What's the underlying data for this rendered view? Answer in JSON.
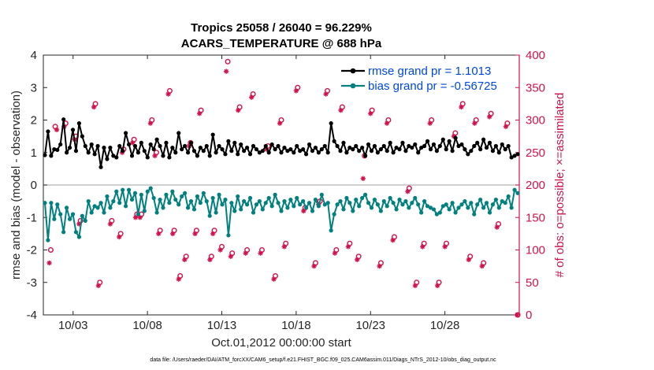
{
  "chart_data": {
    "type": "line",
    "title": "Tropics 25058 / 26040 = 96.229%",
    "subtitle": "ACARS_TEMPERATURE @ 688 hPa",
    "xlabel": "Oct.01,2012 00:00:00 start",
    "ylabel": "rmse and bias (model - observation)",
    "y2label": "# of obs: o=possible; ×=assimilated",
    "footnote": "data file: /Users/raeder/DAI/ATM_forcXX/CAM6_setup/f.e21.FHIST_BGC.f09_025.CAM6assim.011/Diags_NTrS_2012-10/obs_diag_output.nc",
    "xlim": [
      1,
      33
    ],
    "ylim": [
      -4,
      4
    ],
    "y2lim": [
      0,
      400
    ],
    "xtick_positions": [
      3,
      8,
      13,
      18,
      23,
      28
    ],
    "xtick_labels": [
      "10/03",
      "10/08",
      "10/13",
      "10/18",
      "10/23",
      "10/28"
    ],
    "yticks": [
      -4,
      -3,
      -2,
      -1,
      0,
      1,
      2,
      3,
      4
    ],
    "y2ticks": [
      0,
      50,
      100,
      150,
      200,
      250,
      300,
      350,
      400
    ],
    "colors": {
      "rmse": "#000000",
      "bias": "#00807f",
      "obs": "#d11149",
      "legend_text": "#0047e0",
      "zero_line": "#b3b3b3"
    },
    "legend": [
      {
        "label": "rmse grand pr = 1.1013",
        "series": "rmse"
      },
      {
        "label": "bias grand pr = -0.56725",
        "series": "bias"
      }
    ],
    "rmse": [
      0.92,
      1.65,
      0.9,
      1.1,
      1.08,
      1.25,
      2.02,
      1.0,
      1.15,
      1.7,
      1.05,
      1.9,
      1.5,
      1.2,
      1.0,
      1.25,
      0.95,
      1.2,
      0.55,
      1.15,
      0.8,
      1.15,
      0.9,
      0.85,
      1.2,
      1.05,
      1.6,
      1.25,
      0.9,
      1.2,
      1.0,
      1.3,
      1.05,
      0.85,
      1.25,
      1.1,
      1.4,
      1.2,
      0.9,
      1.3,
      0.85,
      1.15,
      1.0,
      1.6,
      1.1,
      1.2,
      1.0,
      1.3,
      1.05,
      0.9,
      1.15,
      1.05,
      1.2,
      0.9,
      1.55,
      1.0,
      1.2,
      1.1,
      0.95,
      1.35,
      1.05,
      1.3,
      0.95,
      1.25,
      1.05,
      1.15,
      0.95,
      1.2,
      1.1,
      1.0,
      1.05,
      1.2,
      1.0,
      1.25,
      1.1,
      1.2,
      1.0,
      1.15,
      1.05,
      1.1,
      1.0,
      1.2,
      1.05,
      1.1,
      0.95,
      1.25,
      1.05,
      1.15,
      1.0,
      1.1,
      1.2,
      1.0,
      1.9,
      1.35,
      1.2,
      1.05,
      1.3,
      1.0,
      1.15,
      1.1,
      1.2,
      1.05,
      1.15,
      0.9,
      1.25,
      1.05,
      1.2,
      1.0,
      1.1,
      1.2,
      1.05,
      1.3,
      1.0,
      1.15,
      1.1,
      1.3,
      1.05,
      1.2,
      1.15,
      1.25,
      1.0,
      1.15,
      1.2,
      1.35,
      1.1,
      1.25,
      1.05,
      1.2,
      1.4,
      1.1,
      1.35,
      1.05,
      1.45,
      1.2,
      1.25,
      1.1,
      0.95,
      1.05,
      1.2,
      1.3,
      1.1,
      1.4,
      1.15,
      1.3,
      1.05,
      1.2,
      1.0,
      1.25,
      1.1,
      1.2,
      0.85,
      0.9,
      0.95
    ],
    "bias": [
      -0.55,
      -1.7,
      -0.55,
      -1.05,
      -0.6,
      -0.9,
      -1.45,
      -0.7,
      -1.05,
      -0.9,
      -1.45,
      -1.6,
      -0.95,
      -1.1,
      -0.5,
      -0.85,
      -0.65,
      -0.7,
      -0.55,
      -0.85,
      -0.35,
      -0.7,
      -0.5,
      -0.2,
      -0.55,
      -0.15,
      -0.65,
      -0.15,
      -0.45,
      -0.25,
      -0.9,
      -0.3,
      -0.8,
      -0.2,
      -0.1,
      -0.4,
      -0.85,
      -0.45,
      -0.7,
      -0.3,
      -0.55,
      -0.2,
      -0.45,
      -0.6,
      -0.35,
      -0.25,
      -0.7,
      -0.5,
      -0.75,
      -0.35,
      -0.55,
      -0.25,
      -0.5,
      -0.95,
      -0.4,
      -0.85,
      -0.3,
      -0.6,
      -0.45,
      -1.55,
      -0.55,
      -0.8,
      -0.35,
      -0.75,
      -0.5,
      -0.6,
      -0.4,
      -0.85,
      -0.6,
      -0.5,
      -0.75,
      -0.55,
      -0.4,
      -0.65,
      -0.3,
      -0.55,
      -0.8,
      -0.5,
      -0.7,
      -0.45,
      -0.65,
      -0.4,
      -0.6,
      -0.5,
      -0.7,
      -0.55,
      -0.8,
      -0.45,
      -0.65,
      -0.3,
      -0.6,
      -0.55,
      -1.4,
      -0.9,
      -0.6,
      -0.5,
      -0.75,
      -0.4,
      -0.55,
      -0.8,
      -0.45,
      -0.65,
      -0.4,
      -0.3,
      -0.55,
      -0.7,
      -0.45,
      -0.6,
      -0.8,
      -0.5,
      -0.65,
      -0.4,
      -0.55,
      -0.75,
      -0.45,
      -0.6,
      -0.5,
      -0.7,
      -0.55,
      -0.4,
      -0.6,
      -0.85,
      -0.5,
      -0.65,
      -0.7,
      -0.75,
      -0.9,
      -0.85,
      -0.65,
      -0.6,
      -0.75,
      -0.55,
      -0.85,
      -0.7,
      -0.6,
      -0.5,
      -0.7,
      -0.55,
      -0.9,
      -0.6,
      -0.45,
      -0.7,
      -0.55,
      -0.85,
      -0.6,
      -0.45,
      -0.7,
      -0.5,
      -0.55,
      -0.35,
      -0.7,
      -0.15,
      -0.25
    ],
    "obs_possible": [
      [
        1.5,
        100
      ],
      [
        1.8,
        290
      ],
      [
        2.5,
        295
      ],
      [
        3.2,
        275
      ],
      [
        3.5,
        145
      ],
      [
        4.5,
        325
      ],
      [
        4.8,
        50
      ],
      [
        5.6,
        145
      ],
      [
        6.2,
        125
      ],
      [
        6.4,
        255
      ],
      [
        7.1,
        270
      ],
      [
        7.3,
        155
      ],
      [
        7.6,
        155
      ],
      [
        8.3,
        300
      ],
      [
        8.6,
        250
      ],
      [
        8.85,
        130
      ],
      [
        9.5,
        345
      ],
      [
        9.8,
        130
      ],
      [
        10.2,
        60
      ],
      [
        10.6,
        90
      ],
      [
        10.9,
        265
      ],
      [
        11.3,
        130
      ],
      [
        11.6,
        315
      ],
      [
        12.3,
        90
      ],
      [
        12.5,
        130
      ],
      [
        13.0,
        105
      ],
      [
        13.4,
        390
      ],
      [
        13.7,
        95
      ],
      [
        14.2,
        320
      ],
      [
        14.7,
        100
      ],
      [
        15.1,
        340
      ],
      [
        15.7,
        100
      ],
      [
        16.1,
        260
      ],
      [
        16.6,
        60
      ],
      [
        17.0,
        300
      ],
      [
        17.3,
        110
      ],
      [
        18.1,
        350
      ],
      [
        18.6,
        165
      ],
      [
        19.3,
        80
      ],
      [
        19.6,
        175
      ],
      [
        20.1,
        345
      ],
      [
        20.7,
        100
      ],
      [
        21.1,
        320
      ],
      [
        21.6,
        110
      ],
      [
        22.2,
        90
      ],
      [
        22.6,
        245
      ],
      [
        23.1,
        315
      ],
      [
        23.7,
        80
      ],
      [
        24.2,
        300
      ],
      [
        24.6,
        120
      ],
      [
        25.6,
        195
      ],
      [
        26.1,
        50
      ],
      [
        26.6,
        110
      ],
      [
        27.1,
        300
      ],
      [
        27.6,
        50
      ],
      [
        28.1,
        110
      ],
      [
        28.7,
        280
      ],
      [
        29.2,
        325
      ],
      [
        29.7,
        90
      ],
      [
        30.1,
        300
      ],
      [
        30.6,
        80
      ],
      [
        31.1,
        310
      ],
      [
        31.6,
        140
      ],
      [
        32.2,
        295
      ],
      [
        32.9,
        0
      ]
    ],
    "obs_assimilated": [
      [
        1.4,
        80
      ],
      [
        1.9,
        285
      ],
      [
        2.4,
        290
      ],
      [
        3.1,
        270
      ],
      [
        3.4,
        140
      ],
      [
        4.4,
        320
      ],
      [
        4.7,
        45
      ],
      [
        5.5,
        140
      ],
      [
        6.1,
        120
      ],
      [
        6.3,
        250
      ],
      [
        7.0,
        265
      ],
      [
        7.2,
        150
      ],
      [
        7.5,
        150
      ],
      [
        8.2,
        295
      ],
      [
        8.5,
        245
      ],
      [
        8.75,
        125
      ],
      [
        9.4,
        340
      ],
      [
        9.7,
        125
      ],
      [
        10.1,
        55
      ],
      [
        10.5,
        85
      ],
      [
        10.8,
        260
      ],
      [
        11.2,
        125
      ],
      [
        11.5,
        310
      ],
      [
        12.2,
        85
      ],
      [
        12.4,
        125
      ],
      [
        12.9,
        100
      ],
      [
        13.3,
        375
      ],
      [
        13.6,
        90
      ],
      [
        14.1,
        315
      ],
      [
        14.6,
        95
      ],
      [
        15.0,
        335
      ],
      [
        15.6,
        95
      ],
      [
        16.0,
        255
      ],
      [
        16.5,
        55
      ],
      [
        16.9,
        295
      ],
      [
        17.2,
        105
      ],
      [
        18.0,
        345
      ],
      [
        18.5,
        160
      ],
      [
        19.2,
        75
      ],
      [
        19.5,
        170
      ],
      [
        20.0,
        340
      ],
      [
        20.6,
        95
      ],
      [
        21.0,
        315
      ],
      [
        21.5,
        105
      ],
      [
        22.1,
        85
      ],
      [
        22.5,
        210
      ],
      [
        23.0,
        310
      ],
      [
        23.6,
        75
      ],
      [
        24.1,
        295
      ],
      [
        24.5,
        115
      ],
      [
        25.5,
        190
      ],
      [
        26.0,
        45
      ],
      [
        26.5,
        105
      ],
      [
        27.0,
        295
      ],
      [
        27.5,
        45
      ],
      [
        28.0,
        105
      ],
      [
        28.6,
        275
      ],
      [
        29.1,
        320
      ],
      [
        29.6,
        85
      ],
      [
        30.0,
        295
      ],
      [
        30.5,
        75
      ],
      [
        31.0,
        305
      ],
      [
        31.5,
        135
      ],
      [
        32.1,
        290
      ],
      [
        32.85,
        0
      ]
    ]
  }
}
